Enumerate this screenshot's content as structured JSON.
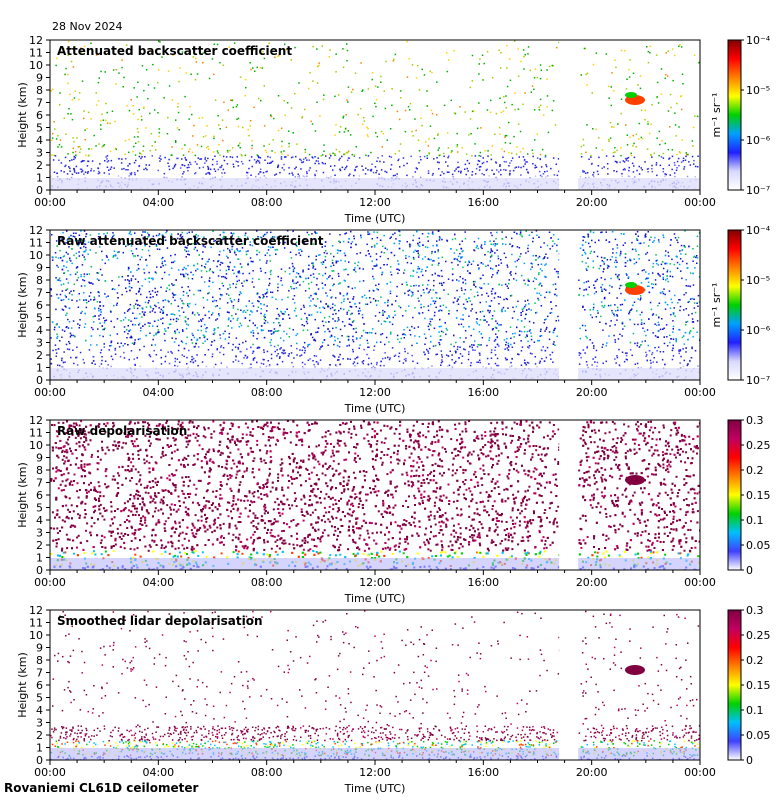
{
  "date": "28 Nov 2024",
  "footer": "Rovaniemi CL61D ceilometer",
  "chart_data": [
    {
      "type": "heatmap",
      "title": "Attenuated backscatter coefficient",
      "xlabel": "Time (UTC)",
      "ylabel": "Height (km)",
      "xticks": [
        "00:00",
        "04:00",
        "08:00",
        "12:00",
        "16:00",
        "20:00",
        "00:00"
      ],
      "yticks": [
        "0",
        "1",
        "2",
        "3",
        "4",
        "5",
        "6",
        "7",
        "8",
        "9",
        "10",
        "11",
        "12"
      ],
      "ylim": [
        0,
        12
      ],
      "colorbar": {
        "scale": "log",
        "ticks": [
          "10⁻⁷",
          "10⁻⁶",
          "10⁻⁵",
          "10⁻⁴"
        ],
        "label": "m⁻¹ sr⁻¹"
      }
    },
    {
      "type": "heatmap",
      "title": "Raw attenuated backscatter coefficient",
      "xlabel": "Time (UTC)",
      "ylabel": "Height (km)",
      "xticks": [
        "00:00",
        "04:00",
        "08:00",
        "12:00",
        "16:00",
        "20:00",
        "00:00"
      ],
      "yticks": [
        "0",
        "1",
        "2",
        "3",
        "4",
        "5",
        "6",
        "7",
        "8",
        "9",
        "10",
        "11",
        "12"
      ],
      "ylim": [
        0,
        12
      ],
      "colorbar": {
        "scale": "log",
        "ticks": [
          "10⁻⁷",
          "10⁻⁶",
          "10⁻⁵",
          "10⁻⁴"
        ],
        "label": "m⁻¹ sr⁻¹"
      }
    },
    {
      "type": "heatmap",
      "title": "Raw depolarisation",
      "xlabel": "Time (UTC)",
      "ylabel": "Height (km)",
      "xticks": [
        "00:00",
        "04:00",
        "08:00",
        "12:00",
        "16:00",
        "20:00",
        "00:00"
      ],
      "yticks": [
        "0",
        "1",
        "2",
        "3",
        "4",
        "5",
        "6",
        "7",
        "8",
        "9",
        "10",
        "11",
        "12"
      ],
      "ylim": [
        0,
        12
      ],
      "colorbar": {
        "scale": "linear",
        "ticks": [
          "0",
          "0.05",
          "0.1",
          "0.15",
          "0.2",
          "0.25",
          "0.3"
        ],
        "label": ""
      }
    },
    {
      "type": "heatmap",
      "title": "Smoothed lidar depolarisation",
      "xlabel": "Time (UTC)",
      "ylabel": "Height (km)",
      "xticks": [
        "00:00",
        "04:00",
        "08:00",
        "12:00",
        "16:00",
        "20:00",
        "00:00"
      ],
      "yticks": [
        "0",
        "1",
        "2",
        "3",
        "4",
        "5",
        "6",
        "7",
        "8",
        "9",
        "10",
        "11",
        "12"
      ],
      "ylim": [
        0,
        12
      ],
      "colorbar": {
        "scale": "linear",
        "ticks": [
          "0",
          "0.05",
          "0.1",
          "0.15",
          "0.2",
          "0.25",
          "0.3"
        ],
        "label": ""
      }
    }
  ]
}
